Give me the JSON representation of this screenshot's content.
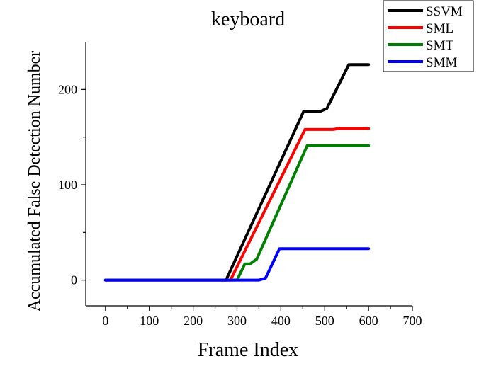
{
  "chart_data": {
    "type": "line",
    "title": "keyboard",
    "xlabel": "Frame Index",
    "ylabel": "Accumulated False Detection Number",
    "xlim": [
      -45,
      700
    ],
    "ylim": [
      -27,
      250
    ],
    "xticks": [
      0,
      100,
      200,
      300,
      400,
      500,
      600,
      700
    ],
    "yticks": [
      0,
      100,
      200
    ],
    "x_minor_ticks": [
      50,
      150,
      250,
      350,
      450,
      550,
      650
    ],
    "y_minor_ticks": [
      50,
      150
    ],
    "grid": false,
    "legend_position": "top-right",
    "series": [
      {
        "name": "SSVM",
        "color": "#000000",
        "points": [
          [
            0,
            0
          ],
          [
            275,
            0
          ],
          [
            452,
            177
          ],
          [
            490,
            177
          ],
          [
            505,
            180
          ],
          [
            555,
            226
          ],
          [
            600,
            226
          ]
        ]
      },
      {
        "name": "SML",
        "color": "#ff0000",
        "points": [
          [
            0,
            0
          ],
          [
            285,
            0
          ],
          [
            455,
            158
          ],
          [
            520,
            158
          ],
          [
            530,
            159
          ],
          [
            600,
            159
          ]
        ]
      },
      {
        "name": "SMT",
        "color": "#008000",
        "points": [
          [
            0,
            0
          ],
          [
            300,
            0
          ],
          [
            318,
            17
          ],
          [
            330,
            17
          ],
          [
            345,
            22
          ],
          [
            460,
            141
          ],
          [
            600,
            141
          ]
        ]
      },
      {
        "name": "SMM",
        "color": "#0000ff",
        "points": [
          [
            0,
            0
          ],
          [
            350,
            0
          ],
          [
            365,
            2
          ],
          [
            397,
            33
          ],
          [
            600,
            33
          ]
        ]
      }
    ]
  }
}
